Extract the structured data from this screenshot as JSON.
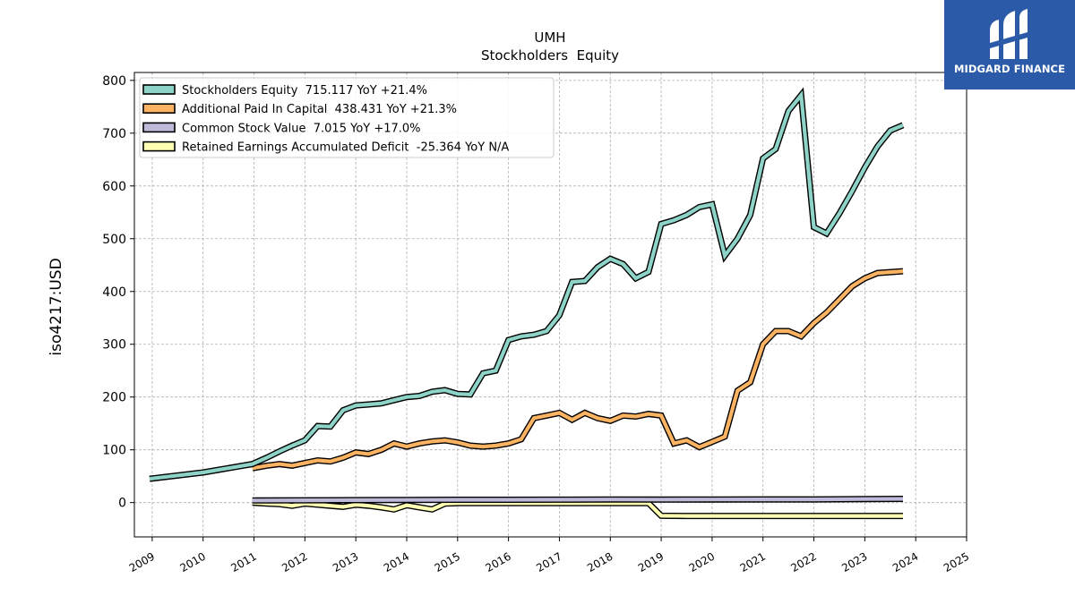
{
  "chart_data": {
    "type": "line",
    "title": "UMH",
    "subtitle": "Stockholders  Equity",
    "ylabel": "iso4217:USD",
    "xlabel": "",
    "xlim": [
      2008.65,
      2025.0
    ],
    "ylim": [
      -65,
      815
    ],
    "x_ticks": [
      "2009",
      "2010",
      "2011",
      "2012",
      "2013",
      "2014",
      "2015",
      "2016",
      "2017",
      "2018",
      "2019",
      "2020",
      "2021",
      "2022",
      "2023",
      "2024",
      "2025"
    ],
    "y_ticks": [
      0,
      100,
      200,
      300,
      400,
      500,
      600,
      700,
      800
    ],
    "grid": true,
    "legend_position": "top-left",
    "series": [
      {
        "name": "Stockholders Equity  715.117 YoY +21.4%",
        "color": "#8dd3c7",
        "points": [
          [
            2008.95,
            45
          ],
          [
            2010.0,
            57
          ],
          [
            2010.97,
            73
          ],
          [
            2011.25,
            85
          ],
          [
            2011.5,
            97
          ],
          [
            2011.75,
            108
          ],
          [
            2012.0,
            118
          ],
          [
            2012.25,
            145
          ],
          [
            2012.5,
            144
          ],
          [
            2012.75,
            175
          ],
          [
            2013.0,
            184
          ],
          [
            2013.25,
            186
          ],
          [
            2013.5,
            188
          ],
          [
            2013.75,
            194
          ],
          [
            2014.0,
            200
          ],
          [
            2014.25,
            202
          ],
          [
            2014.5,
            210
          ],
          [
            2014.75,
            213
          ],
          [
            2015.0,
            206
          ],
          [
            2015.25,
            205
          ],
          [
            2015.5,
            245
          ],
          [
            2015.75,
            250
          ],
          [
            2016.0,
            308
          ],
          [
            2016.25,
            315
          ],
          [
            2016.5,
            318
          ],
          [
            2016.75,
            325
          ],
          [
            2017.0,
            355
          ],
          [
            2017.25,
            418
          ],
          [
            2017.5,
            420
          ],
          [
            2017.75,
            446
          ],
          [
            2018.0,
            462
          ],
          [
            2018.25,
            452
          ],
          [
            2018.5,
            425
          ],
          [
            2018.75,
            437
          ],
          [
            2019.0,
            528
          ],
          [
            2019.25,
            535
          ],
          [
            2019.5,
            545
          ],
          [
            2019.75,
            560
          ],
          [
            2020.0,
            565
          ],
          [
            2020.25,
            468
          ],
          [
            2020.5,
            500
          ],
          [
            2020.75,
            545
          ],
          [
            2021.0,
            652
          ],
          [
            2021.25,
            670
          ],
          [
            2021.5,
            742
          ],
          [
            2021.75,
            772
          ],
          [
            2022.0,
            522
          ],
          [
            2022.25,
            510
          ],
          [
            2022.5,
            548
          ],
          [
            2022.75,
            590
          ],
          [
            2023.0,
            635
          ],
          [
            2023.25,
            675
          ],
          [
            2023.5,
            705
          ],
          [
            2023.75,
            715.117
          ]
        ]
      },
      {
        "name": "Additional Paid In Capital  438.431 YoY +21.3%",
        "color": "#fdb462",
        "points": [
          [
            2010.97,
            65
          ],
          [
            2011.25,
            70
          ],
          [
            2011.5,
            73
          ],
          [
            2011.75,
            70
          ],
          [
            2012.0,
            75
          ],
          [
            2012.25,
            80
          ],
          [
            2012.5,
            78
          ],
          [
            2012.75,
            85
          ],
          [
            2013.0,
            95
          ],
          [
            2013.25,
            92
          ],
          [
            2013.5,
            100
          ],
          [
            2013.75,
            112
          ],
          [
            2014.0,
            106
          ],
          [
            2014.25,
            112
          ],
          [
            2014.5,
            116
          ],
          [
            2014.75,
            118
          ],
          [
            2015.0,
            114
          ],
          [
            2015.25,
            108
          ],
          [
            2015.5,
            106
          ],
          [
            2015.75,
            108
          ],
          [
            2016.0,
            112
          ],
          [
            2016.25,
            120
          ],
          [
            2016.5,
            160
          ],
          [
            2016.75,
            165
          ],
          [
            2017.0,
            170
          ],
          [
            2017.25,
            157
          ],
          [
            2017.5,
            170
          ],
          [
            2017.75,
            160
          ],
          [
            2018.0,
            155
          ],
          [
            2018.25,
            165
          ],
          [
            2018.5,
            163
          ],
          [
            2018.75,
            168
          ],
          [
            2019.0,
            165
          ],
          [
            2019.25,
            112
          ],
          [
            2019.5,
            118
          ],
          [
            2019.75,
            105
          ],
          [
            2020.0,
            115
          ],
          [
            2020.25,
            125
          ],
          [
            2020.5,
            212
          ],
          [
            2020.75,
            228
          ],
          [
            2021.0,
            300
          ],
          [
            2021.25,
            325
          ],
          [
            2021.5,
            325
          ],
          [
            2021.75,
            315
          ],
          [
            2022.0,
            340
          ],
          [
            2022.25,
            360
          ],
          [
            2022.5,
            385
          ],
          [
            2022.75,
            410
          ],
          [
            2023.0,
            425
          ],
          [
            2023.25,
            435
          ],
          [
            2023.75,
            438.431
          ]
        ]
      },
      {
        "name": "Common Stock Value  7.015 YoY +17.0%",
        "color": "#bebada",
        "points": [
          [
            2010.97,
            4
          ],
          [
            2012.0,
            4.3
          ],
          [
            2013.0,
            4.7
          ],
          [
            2014.0,
            5.0
          ],
          [
            2015.0,
            5.3
          ],
          [
            2016.0,
            5.4
          ],
          [
            2017.0,
            5.6
          ],
          [
            2018.0,
            5.9
          ],
          [
            2019.0,
            5.7
          ],
          [
            2020.0,
            5.8
          ],
          [
            2021.0,
            6.0
          ],
          [
            2022.0,
            6.1
          ],
          [
            2023.0,
            6.8
          ],
          [
            2023.75,
            7.015
          ]
        ]
      },
      {
        "name": "Retained Earnings Accumulated Deficit  -25.364 YoY N/A",
        "color": "#ffffb3",
        "points": [
          [
            2010.97,
            0
          ],
          [
            2011.25,
            -2
          ],
          [
            2011.5,
            -3
          ],
          [
            2011.75,
            -6
          ],
          [
            2012.0,
            -2
          ],
          [
            2012.25,
            -4
          ],
          [
            2012.5,
            -6
          ],
          [
            2012.75,
            -8
          ],
          [
            2013.0,
            -4
          ],
          [
            2013.25,
            -6
          ],
          [
            2013.5,
            -9
          ],
          [
            2013.75,
            -13
          ],
          [
            2014.0,
            -5
          ],
          [
            2014.25,
            -9
          ],
          [
            2014.5,
            -13
          ],
          [
            2014.75,
            -2
          ],
          [
            2015.0,
            -1
          ],
          [
            2018.75,
            -1
          ],
          [
            2019.0,
            -25
          ],
          [
            2019.5,
            -25.364
          ],
          [
            2023.75,
            -25.364
          ]
        ]
      }
    ]
  },
  "branding": {
    "logo_text": "MIDGARD FINANCE",
    "logo_color": "#2b5aa8"
  }
}
